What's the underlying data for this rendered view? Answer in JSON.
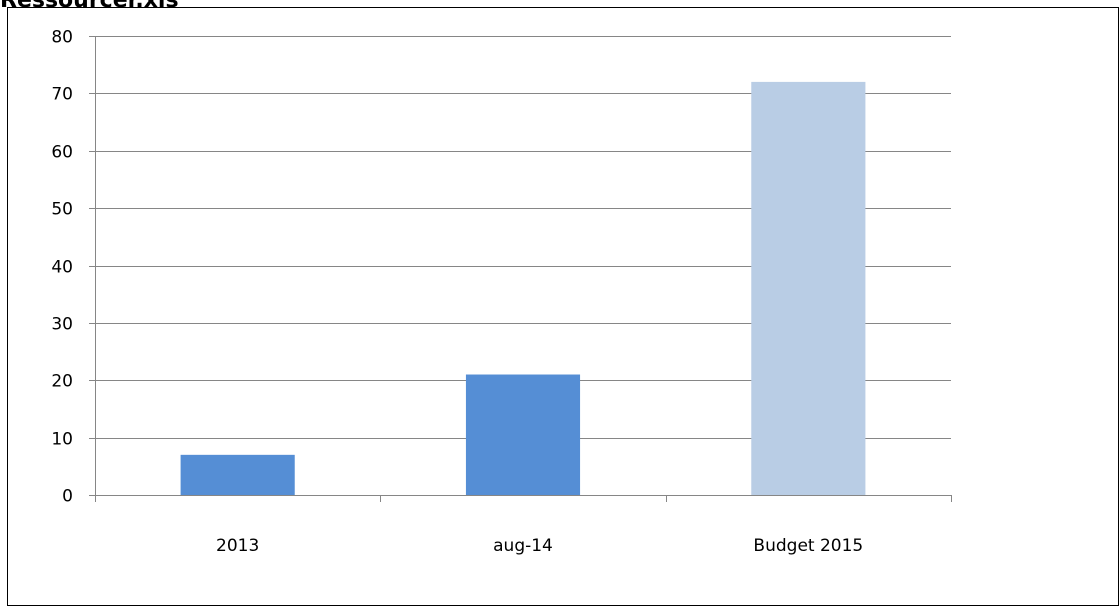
{
  "title": "Ressourcer.xls",
  "chart_data": {
    "type": "bar",
    "title": "",
    "xlabel": "",
    "ylabel": "",
    "categories": [
      "2013",
      "aug-14",
      "Budget 2015"
    ],
    "values": [
      7,
      21,
      72
    ],
    "bar_colors": [
      "#558ED5",
      "#558ED5",
      "#B9CDE5"
    ],
    "ylim": [
      0,
      80
    ],
    "yticks": [
      0,
      10,
      20,
      30,
      40,
      50,
      60,
      70,
      80
    ],
    "grid": true,
    "legend": "none"
  },
  "colors": {
    "gridline": "#868686",
    "axis": "#868686",
    "text": "#000000"
  }
}
